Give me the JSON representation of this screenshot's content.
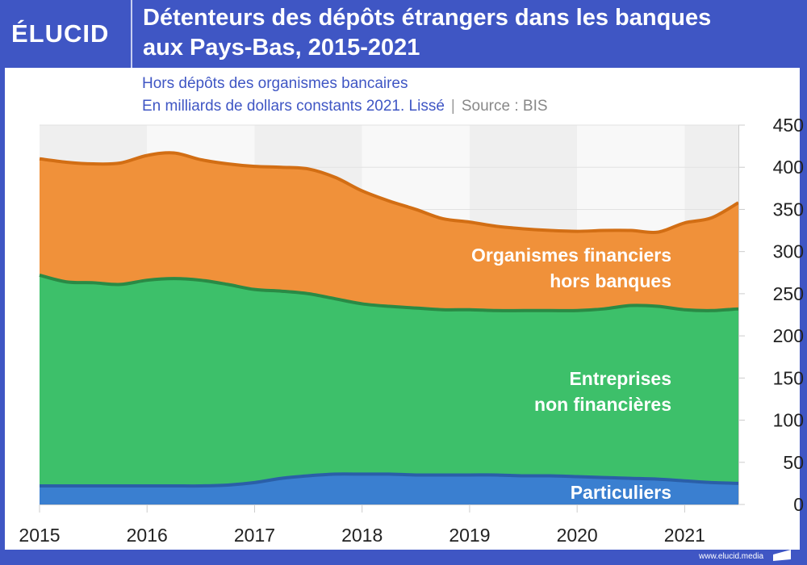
{
  "brand": {
    "logo": "ÉLUCID",
    "url": "www.elucid.media"
  },
  "header": {
    "title_line1": "Détenteurs des dépôts étrangers dans les banques",
    "title_line2": "aux Pays-Bas, 2015-2021"
  },
  "subtitle": {
    "line1": "Hors dépôts des organismes bancaires",
    "line2": "En milliards de dollars constants 2021. Lissé",
    "separator": "|",
    "source": "Source : BIS"
  },
  "colors": {
    "particuliers": "#3a7fd0",
    "particuliers_line": "#2a5fa8",
    "entreprises": "#3dc06a",
    "entreprises_line": "#2a8a45",
    "organismes": "#f0913a",
    "organismes_line": "#d26e14",
    "band_dark": "#efefef",
    "band_light": "#f8f8f8"
  },
  "chart_data": {
    "type": "area",
    "stacked": true,
    "title": "Détenteurs des dépôts étrangers dans les banques aux Pays-Bas, 2015-2021",
    "subtitle": "Hors dépôts des organismes bancaires. En milliards de dollars constants 2021. Lissé",
    "source": "BIS",
    "xlabel": "",
    "ylabel": "",
    "xlim": [
      2015,
      2021.5
    ],
    "ylim": [
      0,
      450
    ],
    "x_ticks": [
      "2015",
      "2016",
      "2017",
      "2018",
      "2019",
      "2020",
      "2021"
    ],
    "y_ticks": [
      "0",
      "50",
      "100",
      "150",
      "200",
      "250",
      "300",
      "350",
      "400",
      "450"
    ],
    "y_axis_side": "right",
    "grid": true,
    "x": [
      2015,
      2015.25,
      2015.5,
      2015.75,
      2016,
      2016.25,
      2016.5,
      2016.75,
      2017,
      2017.25,
      2017.5,
      2017.75,
      2018,
      2018.25,
      2018.5,
      2018.75,
      2019,
      2019.25,
      2019.5,
      2019.75,
      2020,
      2020.25,
      2020.5,
      2020.75,
      2021,
      2021.25,
      2021.5
    ],
    "series": [
      {
        "name": "Particuliers",
        "key": "particuliers",
        "values": [
          22,
          22,
          22,
          22,
          22,
          22,
          22,
          23,
          26,
          31,
          34,
          36,
          36,
          36,
          35,
          35,
          35,
          35,
          34,
          34,
          33,
          32,
          31,
          30,
          28,
          26,
          25
        ]
      },
      {
        "name": "Entreprises non financières",
        "key": "entreprises",
        "values": [
          250,
          242,
          241,
          239,
          244,
          246,
          244,
          238,
          229,
          222,
          216,
          208,
          202,
          199,
          198,
          196,
          196,
          195,
          196,
          196,
          197,
          200,
          205,
          205,
          203,
          204,
          207
        ]
      },
      {
        "name": "Organismes financiers hors banques",
        "key": "organismes",
        "values": [
          138,
          142,
          141,
          144,
          148,
          149,
          143,
          143,
          146,
          147,
          148,
          144,
          134,
          125,
          117,
          108,
          104,
          100,
          97,
          95,
          94,
          93,
          89,
          88,
          103,
          110,
          126
        ]
      }
    ],
    "labels": {
      "organismes_line1": "Organismes financiers",
      "organismes_line2": "hors banques",
      "entreprises_line1": "Entreprises",
      "entreprises_line2": "non financières",
      "particuliers": "Particuliers"
    }
  }
}
